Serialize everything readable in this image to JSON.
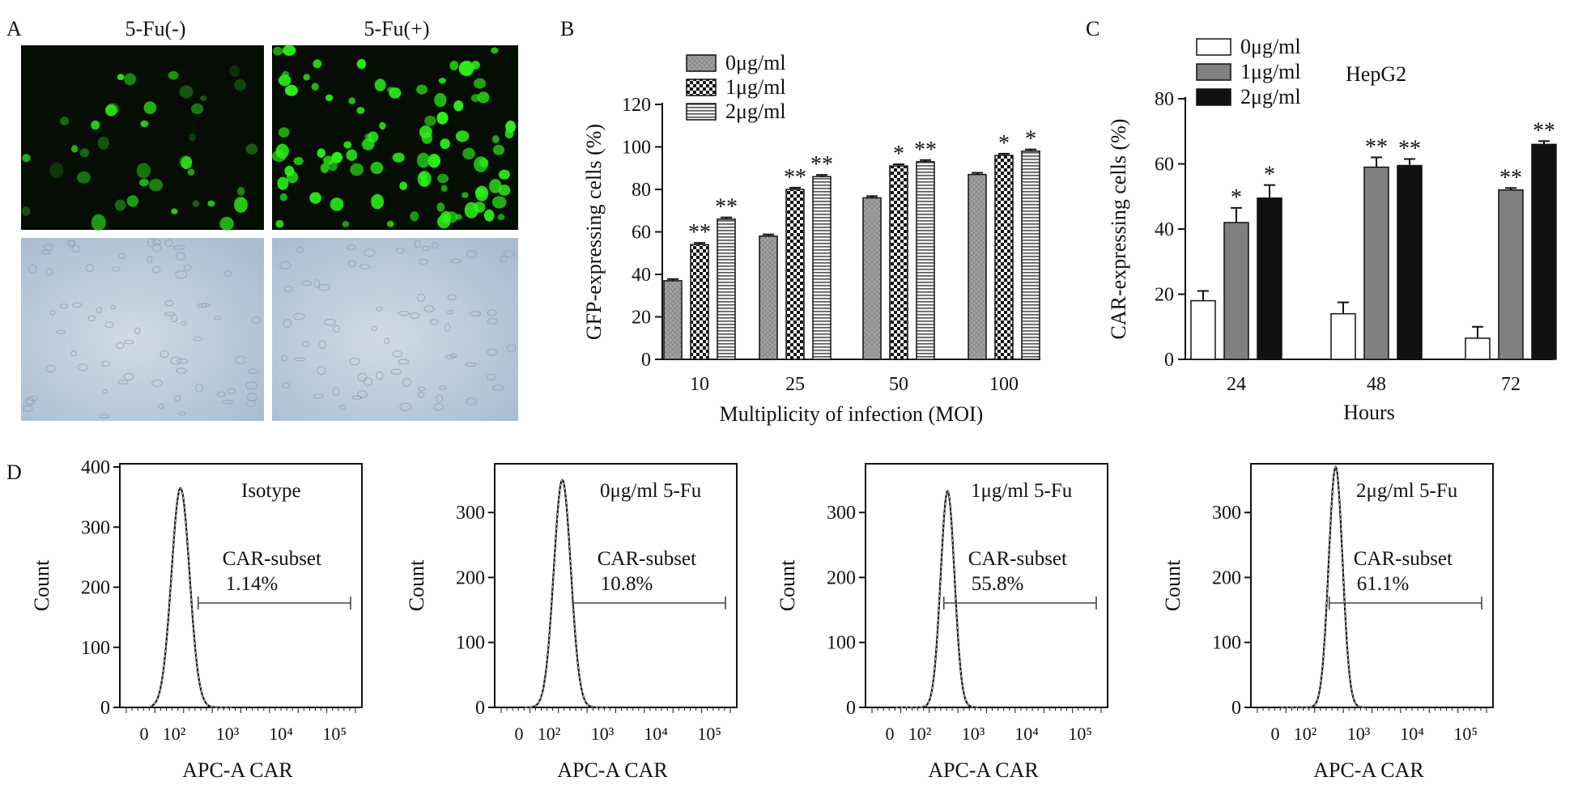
{
  "colors": {
    "fluor_bg": "#060d04",
    "fluor_cell": "#2cf01a",
    "bright_bg": "#b9c8d8",
    "bar_0": "#8a8a8a",
    "bar_1": "#d9d9d9",
    "bar_2": "#eeeeee",
    "c_bar_0": "#ffffff",
    "c_bar_1": "#808080",
    "c_bar_2": "#111111",
    "ink": "#111111"
  },
  "panelA": {
    "letter": "A",
    "col_labels": [
      "5-Fu(-)",
      "5-Fu(+)"
    ]
  },
  "chart_data": [
    {
      "id": "B",
      "type": "bar",
      "panel_letter": "B",
      "categories": [
        "10",
        "25",
        "50",
        "100"
      ],
      "series": [
        {
          "name": "0μg/ml",
          "values": [
            37,
            58,
            76,
            87
          ],
          "errors": [
            0.8,
            0.8,
            0.8,
            0.8
          ],
          "marks": [
            "",
            "",
            "",
            ""
          ]
        },
        {
          "name": "1μg/ml",
          "values": [
            54,
            80,
            91,
            96
          ],
          "errors": [
            0.8,
            0.8,
            0.8,
            0.8
          ],
          "marks": [
            "**",
            "**",
            "*",
            "*"
          ]
        },
        {
          "name": "2μg/ml",
          "values": [
            66,
            86,
            93,
            98
          ],
          "errors": [
            0.8,
            0.8,
            0.8,
            0.8
          ],
          "marks": [
            "**",
            "**",
            "**",
            "*"
          ]
        }
      ],
      "xlabel": "Multiplicity of infection (MOI)",
      "ylabel": "GFP-expressing cells (%)",
      "ylim": [
        0,
        120
      ],
      "yticks": [
        0,
        20,
        40,
        60,
        80,
        100,
        120
      ],
      "legend_position": "top-left"
    },
    {
      "id": "C",
      "type": "bar",
      "panel_letter": "C",
      "categories": [
        "24",
        "48",
        "72"
      ],
      "series": [
        {
          "name": "0μg/ml",
          "values": [
            18,
            14,
            6.5
          ],
          "errors": [
            3,
            3.5,
            3.5
          ],
          "marks": [
            "",
            "",
            ""
          ]
        },
        {
          "name": "1μg/ml",
          "values": [
            42,
            59,
            52
          ],
          "errors": [
            4.5,
            3,
            0.6
          ],
          "marks": [
            "*",
            "**",
            "**"
          ]
        },
        {
          "name": "2μg/ml",
          "values": [
            49.5,
            59.5,
            66
          ],
          "errors": [
            4,
            2,
            1
          ],
          "marks": [
            "*",
            "**",
            "**"
          ]
        }
      ],
      "annotation": "HepG2",
      "xlabel": "Hours",
      "ylabel": "CAR-expressing cells (%)",
      "ylim": [
        0,
        80
      ],
      "yticks": [
        0,
        20,
        40,
        60,
        80
      ],
      "legend_position": "top-left"
    },
    {
      "id": "D1",
      "type": "histogram",
      "panel_letter": "D",
      "label": "Isotype",
      "gate_label": "CAR-subset",
      "gate_percent": "1.14%",
      "gate_range_log": [
        2.45,
        5.3
      ],
      "peak_log": 2.12,
      "peak_count": 365,
      "width_log": 0.17,
      "ylim": [
        0,
        400
      ],
      "yticks": [
        "0",
        "100",
        "200",
        "300",
        "400"
      ],
      "ylabel": "Count",
      "xlabel": "APC-A   CAR",
      "xticks": [
        "0",
        "10²",
        "10³",
        "10⁴",
        "10⁵"
      ]
    },
    {
      "id": "D2",
      "type": "histogram",
      "label": "0μg/ml  5-Fu",
      "gate_label": "CAR-subset",
      "gate_percent": "10.8%",
      "gate_range_log": [
        2.45,
        5.3
      ],
      "peak_log": 2.25,
      "peak_count": 350,
      "width_log": 0.16,
      "ylim": [
        0,
        370
      ],
      "yticks": [
        "0",
        "100",
        "200",
        "300"
      ],
      "ylabel": "Count",
      "xlabel": "APC-A   CAR",
      "xticks": [
        "0",
        "10²",
        "10³",
        "10⁴",
        "10⁵"
      ]
    },
    {
      "id": "D3",
      "type": "histogram",
      "label": "1μg/ml  5-Fu",
      "gate_label": "CAR-subset",
      "gate_percent": "55.8%",
      "gate_range_log": [
        2.45,
        5.3
      ],
      "peak_log": 2.52,
      "peak_count": 333,
      "width_log": 0.13,
      "ylim": [
        0,
        370
      ],
      "yticks": [
        "0",
        "100",
        "200",
        "300"
      ],
      "ylabel": "Count",
      "xlabel": "APC-A   CAR",
      "xticks": [
        "0",
        "10²",
        "10³",
        "10⁴",
        "10⁵"
      ]
    },
    {
      "id": "D4",
      "type": "histogram",
      "label": "2μg/ml  5-Fu",
      "gate_label": "CAR-subset",
      "gate_percent": "61.1%",
      "gate_range_log": [
        2.45,
        5.3
      ],
      "peak_log": 2.57,
      "peak_count": 370,
      "width_log": 0.13,
      "ylim": [
        0,
        370
      ],
      "yticks": [
        "0",
        "100",
        "200",
        "300"
      ],
      "ylabel": "Count",
      "xlabel": "APC-A   CAR",
      "xticks": [
        "0",
        "10²",
        "10³",
        "10⁴",
        "10⁵"
      ]
    }
  ]
}
